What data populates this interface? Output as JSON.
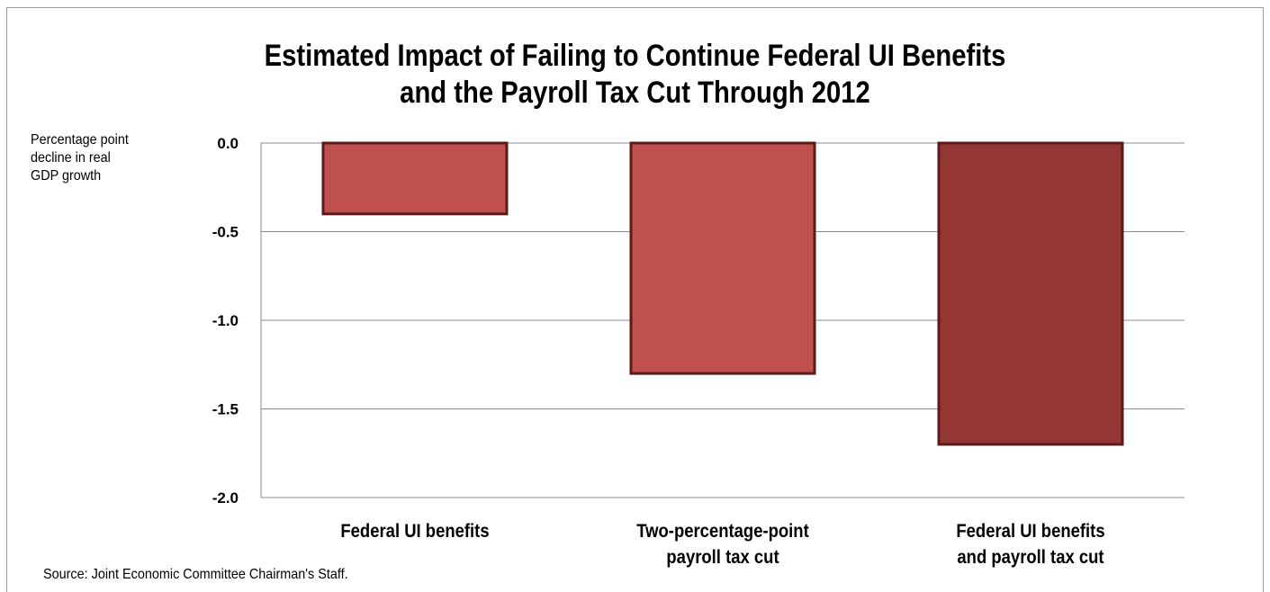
{
  "chart_data": {
    "type": "bar",
    "title": "Estimated Impact of Failing to Continue Federal UI Benefits and the Payroll Tax Cut Through 2012",
    "title_lines": [
      "Estimated Impact of Failing to Continue Federal UI Benefits",
      "and the Payroll Tax Cut Through 2012"
    ],
    "ylabel_lines": [
      "Percentage point",
      "decline in real",
      "GDP growth"
    ],
    "xlabel": "",
    "categories": [
      "Federal UI benefits",
      "Two-percentage-point payroll tax cut",
      "Federal UI benefits and payroll tax cut"
    ],
    "category_lines": [
      [
        "Federal UI benefits"
      ],
      [
        "Two-percentage-point",
        "payroll tax cut"
      ],
      [
        "Federal UI benefits",
        "and payroll tax cut"
      ]
    ],
    "values": [
      -0.4,
      -1.3,
      -1.7
    ],
    "bar_colors": [
      "#c0504d",
      "#c0504d",
      "#943634"
    ],
    "bar_outline": "#5a1b1a",
    "ylim": [
      -2.0,
      0.0
    ],
    "yticks": [
      0.0,
      -0.5,
      -1.0,
      -1.5,
      -2.0
    ],
    "ytick_labels": [
      "0.0",
      "-0.5",
      "-1.0",
      "-1.5",
      "-2.0"
    ],
    "grid": true,
    "legend": "none"
  },
  "source": "Source: Joint Economic Committee Chairman's Staff."
}
